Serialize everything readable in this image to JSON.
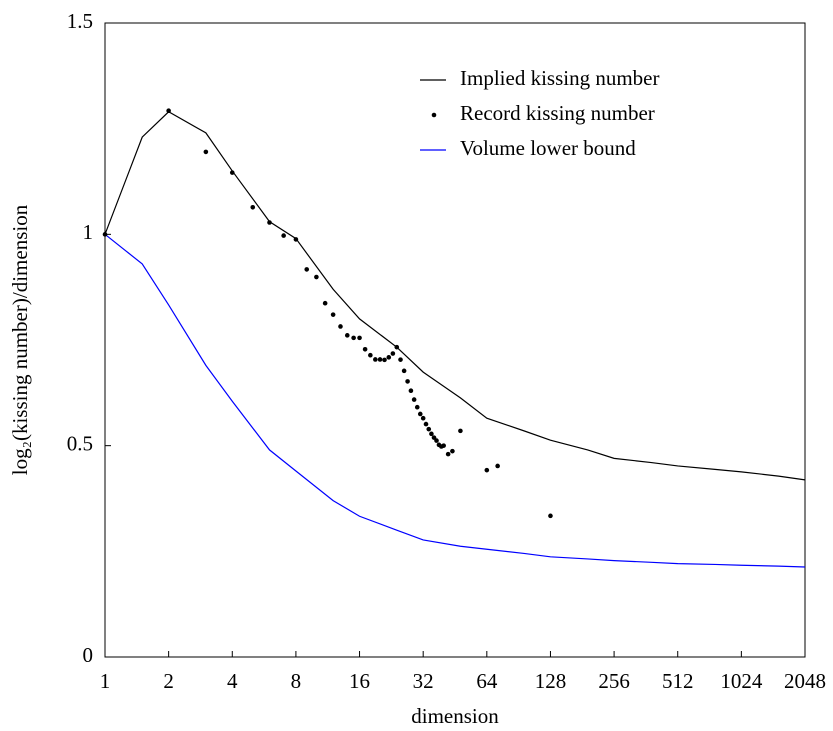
{
  "chart_data": {
    "type": "line",
    "xlabel": "dimension",
    "ylabel": "log₂(kissing number)/dimension",
    "xlog": true,
    "xlim": [
      1,
      2048
    ],
    "xticks": [
      1,
      2,
      4,
      8,
      16,
      32,
      64,
      128,
      256,
      512,
      1024,
      2048
    ],
    "ylim": [
      0,
      1.5
    ],
    "yticks": [
      0,
      0.5,
      1,
      1.5
    ],
    "grid": false,
    "legend": "upper right",
    "series": [
      {
        "name": "Implied kissing number",
        "type": "line",
        "color": "#000000",
        "x": [
          1,
          1.5,
          2,
          3,
          4,
          6,
          8,
          12,
          16,
          24,
          32,
          48,
          64,
          96,
          128,
          192,
          256,
          384,
          512,
          768,
          1024,
          1536,
          2048
        ],
        "values": [
          1.0,
          1.23,
          1.29,
          1.24,
          1.15,
          1.03,
          0.99,
          0.87,
          0.8,
          0.733,
          0.674,
          0.613,
          0.565,
          0.535,
          0.513,
          0.49,
          0.47,
          0.46,
          0.452,
          0.444,
          0.438,
          0.428,
          0.419
        ]
      },
      {
        "name": "Record kissing number",
        "type": "scatter",
        "color": "#000000",
        "x": [
          1,
          2,
          3,
          4,
          5,
          6,
          7,
          8,
          9,
          10,
          11,
          12,
          13,
          14,
          15,
          16,
          17,
          18,
          19,
          20,
          21,
          22,
          23,
          24,
          25,
          26,
          27,
          28,
          29,
          30,
          31,
          32,
          33,
          34,
          35,
          36,
          37,
          38,
          39,
          40,
          42,
          44,
          48,
          64,
          72,
          128
        ],
        "values": [
          1.0,
          1.2925,
          1.195,
          1.146,
          1.064,
          1.028,
          0.997,
          0.988,
          0.917,
          0.899,
          0.837,
          0.81,
          0.782,
          0.761,
          0.755,
          0.755,
          0.728,
          0.714,
          0.704,
          0.704,
          0.703,
          0.709,
          0.718,
          0.733,
          0.7035,
          0.677,
          0.652,
          0.63,
          0.609,
          0.591,
          0.575,
          0.565,
          0.551,
          0.539,
          0.528,
          0.519,
          0.512,
          0.502,
          0.498,
          0.5,
          0.48,
          0.487,
          0.535,
          0.442,
          0.452,
          0.334
        ]
      },
      {
        "name": "Volume lower bound",
        "type": "line",
        "color": "#0000ff",
        "x": [
          1,
          1.5,
          2,
          3,
          4,
          6,
          8,
          12,
          16,
          24,
          32,
          48,
          64,
          96,
          128,
          192,
          256,
          384,
          512,
          768,
          1024,
          1536,
          2048
        ],
        "values": [
          1.0,
          0.93,
          0.833,
          0.69,
          0.605,
          0.49,
          0.44,
          0.37,
          0.333,
          0.3,
          0.277,
          0.262,
          0.255,
          0.245,
          0.237,
          0.232,
          0.228,
          0.224,
          0.221,
          0.219,
          0.217,
          0.215,
          0.213
        ]
      }
    ]
  }
}
